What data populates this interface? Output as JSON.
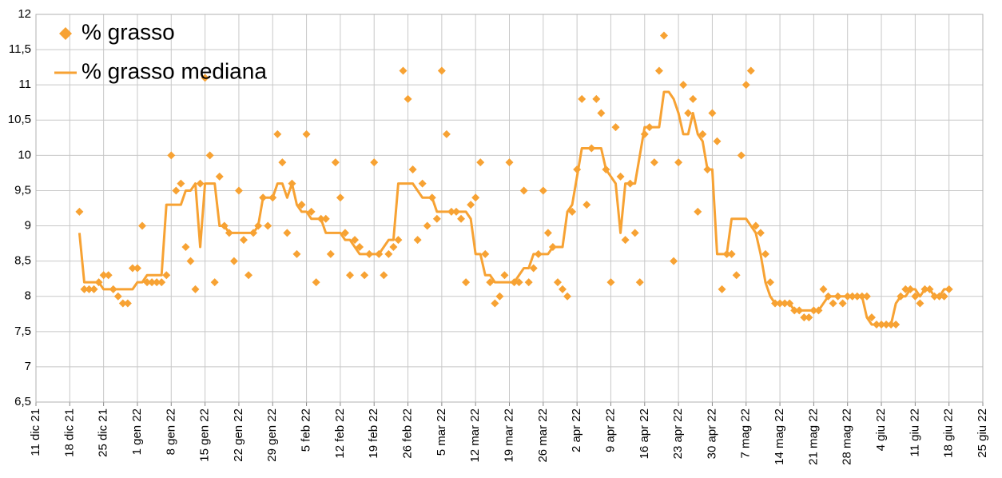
{
  "chart_data": {
    "type": "line",
    "legend": "top-left",
    "grid": true,
    "xlim": [
      "2021-12-11",
      "2022-06-25"
    ],
    "xticks": [
      {
        "value": "2021-12-11",
        "label": "11 dic 21"
      },
      {
        "value": "2021-12-18",
        "label": "18 dic 21"
      },
      {
        "value": "2021-12-25",
        "label": "25 dic 21"
      },
      {
        "value": "2022-01-01",
        "label": "1 gen 22"
      },
      {
        "value": "2022-01-08",
        "label": "8 gen 22"
      },
      {
        "value": "2022-01-15",
        "label": "15 gen 22"
      },
      {
        "value": "2022-01-22",
        "label": "22 gen 22"
      },
      {
        "value": "2022-01-29",
        "label": "29 gen 22"
      },
      {
        "value": "2022-02-05",
        "label": "5 feb 22"
      },
      {
        "value": "2022-02-12",
        "label": "12 feb 22"
      },
      {
        "value": "2022-02-19",
        "label": "19 feb 22"
      },
      {
        "value": "2022-02-26",
        "label": "26 feb 22"
      },
      {
        "value": "2022-03-05",
        "label": "5 mar 22"
      },
      {
        "value": "2022-03-12",
        "label": "12 mar 22"
      },
      {
        "value": "2022-03-19",
        "label": "19 mar 22"
      },
      {
        "value": "2022-03-26",
        "label": "26 mar 22"
      },
      {
        "value": "2022-04-02",
        "label": "2 apr 22"
      },
      {
        "value": "2022-04-09",
        "label": "9 apr 22"
      },
      {
        "value": "2022-04-16",
        "label": "16 apr 22"
      },
      {
        "value": "2022-04-23",
        "label": "23 apr 22"
      },
      {
        "value": "2022-04-30",
        "label": "30 apr 22"
      },
      {
        "value": "2022-05-07",
        "label": "7 mag 22"
      },
      {
        "value": "2022-05-14",
        "label": "14 mag 22"
      },
      {
        "value": "2022-05-21",
        "label": "21 mag 22"
      },
      {
        "value": "2022-05-28",
        "label": "28 mag 22"
      },
      {
        "value": "2022-06-04",
        "label": "4 giu 22"
      },
      {
        "value": "2022-06-11",
        "label": "11 giu 22"
      },
      {
        "value": "2022-06-18",
        "label": "18 giu 22"
      },
      {
        "value": "2022-06-25",
        "label": "25 giu 22"
      }
    ],
    "ylim": [
      6.5,
      12
    ],
    "yticks": [
      {
        "value": 6.5,
        "label": "6,5"
      },
      7,
      {
        "value": 7.5,
        "label": "7,5"
      },
      8,
      {
        "value": 8.5,
        "label": "8,5"
      },
      9,
      {
        "value": 9.5,
        "label": "9,5"
      },
      10,
      {
        "value": 10.5,
        "label": "10,5"
      },
      11,
      {
        "value": 11.5,
        "label": "11,5"
      },
      12
    ],
    "x": [
      "2021-12-20",
      "2021-12-21",
      "2021-12-22",
      "2021-12-23",
      "2021-12-24",
      "2021-12-25",
      "2021-12-26",
      "2021-12-27",
      "2021-12-28",
      "2021-12-29",
      "2021-12-30",
      "2021-12-31",
      "2022-01-01",
      "2022-01-02",
      "2022-01-03",
      "2022-01-04",
      "2022-01-05",
      "2022-01-06",
      "2022-01-07",
      "2022-01-08",
      "2022-01-09",
      "2022-01-10",
      "2022-01-11",
      "2022-01-12",
      "2022-01-13",
      "2022-01-14",
      "2022-01-15",
      "2022-01-16",
      "2022-01-17",
      "2022-01-18",
      "2022-01-19",
      "2022-01-20",
      "2022-01-21",
      "2022-01-22",
      "2022-01-23",
      "2022-01-24",
      "2022-01-25",
      "2022-01-26",
      "2022-01-27",
      "2022-01-28",
      "2022-01-29",
      "2022-01-30",
      "2022-01-31",
      "2022-02-01",
      "2022-02-02",
      "2022-02-03",
      "2022-02-04",
      "2022-02-05",
      "2022-02-06",
      "2022-02-07",
      "2022-02-08",
      "2022-02-09",
      "2022-02-10",
      "2022-02-11",
      "2022-02-12",
      "2022-02-13",
      "2022-02-14",
      "2022-02-15",
      "2022-02-16",
      "2022-02-17",
      "2022-02-18",
      "2022-02-19",
      "2022-02-20",
      "2022-02-21",
      "2022-02-22",
      "2022-02-23",
      "2022-02-24",
      "2022-02-25",
      "2022-02-26",
      "2022-02-27",
      "2022-02-28",
      "2022-03-01",
      "2022-03-02",
      "2022-03-03",
      "2022-03-04",
      "2022-03-05",
      "2022-03-06",
      "2022-03-07",
      "2022-03-08",
      "2022-03-09",
      "2022-03-10",
      "2022-03-11",
      "2022-03-12",
      "2022-03-13",
      "2022-03-14",
      "2022-03-15",
      "2022-03-16",
      "2022-03-17",
      "2022-03-18",
      "2022-03-19",
      "2022-03-20",
      "2022-03-21",
      "2022-03-22",
      "2022-03-23",
      "2022-03-24",
      "2022-03-25",
      "2022-03-26",
      "2022-03-27",
      "2022-03-28",
      "2022-03-29",
      "2022-03-30",
      "2022-03-31",
      "2022-04-01",
      "2022-04-02",
      "2022-04-03",
      "2022-04-04",
      "2022-04-05",
      "2022-04-06",
      "2022-04-07",
      "2022-04-08",
      "2022-04-09",
      "2022-04-10",
      "2022-04-11",
      "2022-04-12",
      "2022-04-13",
      "2022-04-14",
      "2022-04-15",
      "2022-04-16",
      "2022-04-17",
      "2022-04-18",
      "2022-04-19",
      "2022-04-20",
      "2022-04-21",
      "2022-04-22",
      "2022-04-23",
      "2022-04-24",
      "2022-04-25",
      "2022-04-26",
      "2022-04-27",
      "2022-04-28",
      "2022-04-29",
      "2022-04-30",
      "2022-05-01",
      "2022-05-02",
      "2022-05-03",
      "2022-05-04",
      "2022-05-05",
      "2022-05-06",
      "2022-05-07",
      "2022-05-08",
      "2022-05-09",
      "2022-05-10",
      "2022-05-11",
      "2022-05-12",
      "2022-05-13",
      "2022-05-14",
      "2022-05-15",
      "2022-05-16",
      "2022-05-17",
      "2022-05-18",
      "2022-05-19",
      "2022-05-20",
      "2022-05-21",
      "2022-05-22",
      "2022-05-23",
      "2022-05-24",
      "2022-05-25",
      "2022-05-26",
      "2022-05-27",
      "2022-05-28",
      "2022-05-29",
      "2022-05-30",
      "2022-05-31",
      "2022-06-01",
      "2022-06-02",
      "2022-06-03",
      "2022-06-04",
      "2022-06-05",
      "2022-06-06",
      "2022-06-07",
      "2022-06-08",
      "2022-06-09",
      "2022-06-10",
      "2022-06-11",
      "2022-06-12",
      "2022-06-13",
      "2022-06-14",
      "2022-06-15",
      "2022-06-16",
      "2022-06-17",
      "2022-06-18"
    ],
    "series": [
      {
        "name": "% grasso",
        "type": "scatter",
        "color": "#f7a233",
        "values": [
          9.2,
          8.1,
          8.1,
          8.1,
          8.2,
          8.3,
          8.3,
          8.1,
          8.0,
          7.9,
          7.9,
          8.4,
          8.4,
          9.0,
          8.2,
          8.2,
          8.2,
          8.2,
          8.3,
          10.0,
          9.5,
          9.6,
          8.7,
          8.5,
          8.1,
          9.6,
          11.1,
          10.0,
          8.2,
          9.7,
          9.0,
          8.9,
          8.5,
          9.5,
          8.8,
          8.3,
          8.9,
          9.0,
          9.4,
          9.0,
          9.4,
          10.3,
          9.9,
          8.9,
          9.6,
          8.6,
          9.3,
          10.3,
          9.2,
          8.2,
          9.1,
          9.1,
          8.6,
          9.9,
          9.4,
          8.9,
          8.3,
          8.8,
          8.7,
          8.3,
          8.6,
          9.9,
          8.6,
          8.3,
          8.6,
          8.7,
          8.8,
          11.2,
          10.8,
          9.8,
          8.8,
          9.6,
          9.0,
          9.4,
          9.1,
          11.2,
          10.3,
          9.2,
          9.2,
          9.1,
          8.2,
          9.3,
          9.4,
          9.9,
          8.6,
          8.2,
          7.9,
          8.0,
          8.3,
          9.9,
          8.2,
          8.2,
          9.5,
          8.2,
          8.4,
          8.6,
          9.5,
          8.9,
          8.7,
          8.2,
          8.1,
          8.0,
          9.2,
          9.8,
          10.8,
          9.3,
          10.1,
          10.8,
          10.6,
          9.8,
          8.2,
          10.4,
          9.7,
          8.8,
          9.6,
          8.9,
          8.2,
          10.3,
          10.4,
          9.9,
          11.2,
          11.7,
          null,
          8.5,
          9.9,
          11.0,
          10.6,
          10.8,
          9.2,
          10.3,
          9.8,
          10.6,
          10.2,
          8.1,
          8.6,
          8.6,
          8.3,
          10.0,
          11.0,
          11.2,
          9.0,
          8.9,
          8.6,
          8.2,
          7.9,
          7.9,
          7.9,
          7.9,
          7.8,
          7.8,
          7.7,
          7.7,
          7.8,
          7.8,
          8.1,
          8.0,
          7.9,
          8.0,
          7.9,
          8.0,
          8.0,
          8.0,
          8.0,
          8.0,
          7.7,
          7.6,
          7.6,
          7.6,
          7.6,
          7.6,
          8.0,
          8.1,
          8.1,
          8.0,
          7.9,
          8.1,
          8.1,
          8.0,
          8.0,
          8.0,
          8.1
        ]
      },
      {
        "name": "% grasso mediana",
        "type": "line",
        "color": "#f7a233",
        "values": [
          8.9,
          8.2,
          8.2,
          8.2,
          8.2,
          8.1,
          8.1,
          8.1,
          8.1,
          8.1,
          8.1,
          8.1,
          8.2,
          8.2,
          8.3,
          8.3,
          8.3,
          8.3,
          9.3,
          9.3,
          9.3,
          9.3,
          9.5,
          9.5,
          9.6,
          8.7,
          9.6,
          9.6,
          9.6,
          9.0,
          9.0,
          8.9,
          8.9,
          8.9,
          8.9,
          8.9,
          8.9,
          9.0,
          9.4,
          9.4,
          9.4,
          9.6,
          9.6,
          9.4,
          9.6,
          9.3,
          9.2,
          9.2,
          9.1,
          9.1,
          9.1,
          8.9,
          8.9,
          8.9,
          8.9,
          8.8,
          8.8,
          8.7,
          8.6,
          8.6,
          8.6,
          8.6,
          8.6,
          8.7,
          8.8,
          8.8,
          9.6,
          9.6,
          9.6,
          9.6,
          9.5,
          9.4,
          9.4,
          9.4,
          9.2,
          9.2,
          9.2,
          9.2,
          9.2,
          9.2,
          9.2,
          9.1,
          8.6,
          8.6,
          8.3,
          8.3,
          8.2,
          8.2,
          8.2,
          8.2,
          8.2,
          8.3,
          8.4,
          8.4,
          8.6,
          8.6,
          8.6,
          8.6,
          8.7,
          8.7,
          8.7,
          9.2,
          9.3,
          9.7,
          10.1,
          10.1,
          10.1,
          10.1,
          10.1,
          9.8,
          9.7,
          9.6,
          8.9,
          9.6,
          9.6,
          9.6,
          10.0,
          10.4,
          10.4,
          10.4,
          10.4,
          10.9,
          10.9,
          10.8,
          10.6,
          10.3,
          10.3,
          10.6,
          10.3,
          10.2,
          9.8,
          9.8,
          8.6,
          8.6,
          8.6,
          9.1,
          9.1,
          9.1,
          9.1,
          9.0,
          8.9,
          8.6,
          8.2,
          8.0,
          7.9,
          7.9,
          7.9,
          7.9,
          7.8,
          7.8,
          7.8,
          7.8,
          7.8,
          7.8,
          7.9,
          8.0,
          8.0,
          8.0,
          8.0,
          8.0,
          8.0,
          8.0,
          8.0,
          7.7,
          7.6,
          7.6,
          7.6,
          7.6,
          7.6,
          7.9,
          8.0,
          8.0,
          8.1,
          8.1,
          8.0,
          8.1,
          8.1,
          8.0,
          8.0,
          8.1,
          8.1
        ]
      }
    ]
  }
}
